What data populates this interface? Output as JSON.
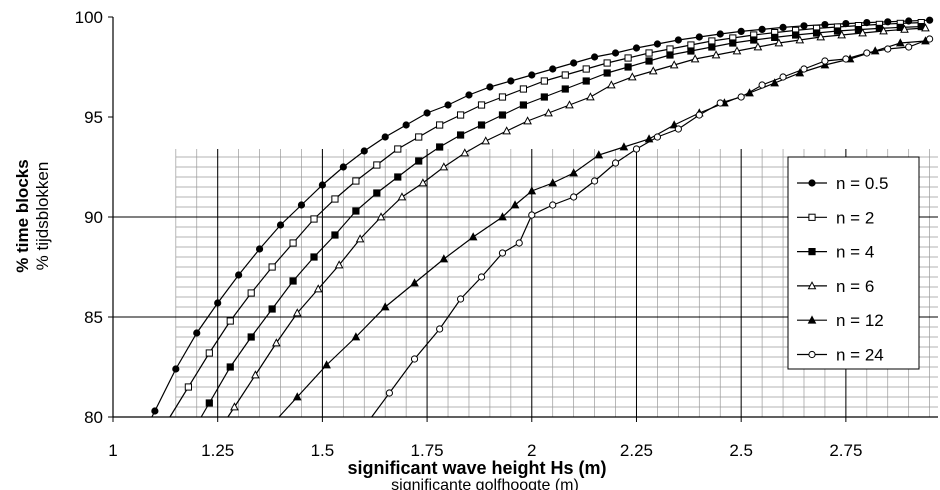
{
  "chart_data": {
    "type": "line",
    "xlabel": "significant wave height Hs (m)",
    "xlabel_secondary": "significante golfhoogte (m)",
    "ylabel": "% time blocks",
    "ylabel_secondary": "% tijdsblokken",
    "xlim": [
      1,
      2.97
    ],
    "ylim": [
      80,
      100
    ],
    "x_ticks": [
      "1",
      "1.25",
      "1.5",
      "1.75",
      "2",
      "2.25",
      "2.5",
      "2.75"
    ],
    "y_ticks": [
      "80",
      "85",
      "90",
      "95",
      "100"
    ],
    "grid": true,
    "legend_position": "right",
    "series": [
      {
        "name": "n = 0.5",
        "marker": "filled-circle",
        "x": [
          1.1,
          1.15,
          1.2,
          1.25,
          1.3,
          1.35,
          1.4,
          1.45,
          1.5,
          1.55,
          1.6,
          1.65,
          1.7,
          1.75,
          1.8,
          1.85,
          1.9,
          1.95,
          2.0,
          2.05,
          2.1,
          2.15,
          2.2,
          2.25,
          2.3,
          2.35,
          2.4,
          2.45,
          2.5,
          2.55,
          2.6,
          2.65,
          2.7,
          2.75,
          2.8,
          2.85,
          2.9,
          2.95
        ],
        "y": [
          80.3,
          82.4,
          84.2,
          85.7,
          87.1,
          88.4,
          89.6,
          90.6,
          91.6,
          92.5,
          93.3,
          94.0,
          94.6,
          95.2,
          95.6,
          96.1,
          96.5,
          96.8,
          97.1,
          97.4,
          97.7,
          98.0,
          98.2,
          98.45,
          98.65,
          98.85,
          99.0,
          99.15,
          99.28,
          99.38,
          99.48,
          99.56,
          99.62,
          99.67,
          99.72,
          99.76,
          99.8,
          99.84
        ]
      },
      {
        "name": "n = 2",
        "marker": "open-square",
        "x": [
          1.18,
          1.23,
          1.28,
          1.33,
          1.38,
          1.43,
          1.48,
          1.53,
          1.58,
          1.63,
          1.68,
          1.73,
          1.78,
          1.83,
          1.88,
          1.93,
          1.98,
          2.03,
          2.08,
          2.13,
          2.18,
          2.23,
          2.28,
          2.33,
          2.38,
          2.43,
          2.48,
          2.53,
          2.58,
          2.63,
          2.68,
          2.73,
          2.78,
          2.83,
          2.88,
          2.93
        ],
        "y": [
          81.5,
          83.2,
          84.8,
          86.2,
          87.5,
          88.7,
          89.9,
          90.9,
          91.8,
          92.6,
          93.4,
          94.0,
          94.6,
          95.1,
          95.6,
          96.0,
          96.4,
          96.8,
          97.1,
          97.4,
          97.7,
          97.95,
          98.2,
          98.4,
          98.6,
          98.8,
          98.95,
          99.1,
          99.22,
          99.33,
          99.43,
          99.5,
          99.57,
          99.63,
          99.68,
          99.72
        ]
      },
      {
        "name": "n = 4",
        "marker": "filled-square",
        "x": [
          1.23,
          1.28,
          1.33,
          1.38,
          1.43,
          1.48,
          1.53,
          1.58,
          1.63,
          1.68,
          1.73,
          1.78,
          1.83,
          1.88,
          1.93,
          1.98,
          2.03,
          2.08,
          2.13,
          2.18,
          2.23,
          2.28,
          2.33,
          2.38,
          2.43,
          2.48,
          2.53,
          2.58,
          2.63,
          2.68,
          2.73,
          2.78,
          2.83,
          2.88,
          2.93
        ],
        "y": [
          80.7,
          82.5,
          84.0,
          85.4,
          86.8,
          88.0,
          89.1,
          90.3,
          91.2,
          92.0,
          92.8,
          93.5,
          94.1,
          94.6,
          95.1,
          95.6,
          96.0,
          96.4,
          96.8,
          97.2,
          97.5,
          97.8,
          98.1,
          98.3,
          98.5,
          98.7,
          98.85,
          98.98,
          99.1,
          99.2,
          99.3,
          99.37,
          99.43,
          99.48,
          99.52
        ]
      },
      {
        "name": "n = 6",
        "marker": "open-triangle",
        "x": [
          1.29,
          1.34,
          1.39,
          1.44,
          1.49,
          1.54,
          1.59,
          1.64,
          1.69,
          1.74,
          1.79,
          1.84,
          1.89,
          1.94,
          1.99,
          2.04,
          2.09,
          2.14,
          2.19,
          2.24,
          2.29,
          2.34,
          2.39,
          2.44,
          2.49,
          2.54,
          2.59,
          2.64,
          2.69,
          2.74,
          2.79,
          2.84,
          2.89,
          2.94
        ],
        "y": [
          80.5,
          82.1,
          83.7,
          85.2,
          86.4,
          87.6,
          88.9,
          90.0,
          91.0,
          91.7,
          92.5,
          93.2,
          93.8,
          94.3,
          94.8,
          95.2,
          95.6,
          96.0,
          96.6,
          97.0,
          97.3,
          97.6,
          97.9,
          98.1,
          98.3,
          98.5,
          98.7,
          98.85,
          99.0,
          99.1,
          99.2,
          99.3,
          99.38,
          99.45
        ]
      },
      {
        "name": "n = 12",
        "marker": "filled-triangle",
        "x": [
          1.44,
          1.51,
          1.58,
          1.65,
          1.72,
          1.79,
          1.86,
          1.93,
          1.96,
          2.0,
          2.05,
          2.1,
          2.16,
          2.22,
          2.28,
          2.34,
          2.4,
          2.46,
          2.52,
          2.58,
          2.64,
          2.7,
          2.76,
          2.82,
          2.88,
          2.94
        ],
        "y": [
          81.0,
          82.6,
          84.0,
          85.5,
          86.7,
          87.9,
          89.0,
          90.0,
          90.6,
          91.3,
          91.7,
          92.2,
          93.1,
          93.5,
          93.9,
          94.6,
          95.2,
          95.7,
          96.2,
          96.7,
          97.2,
          97.6,
          97.9,
          98.3,
          98.7,
          98.8
        ]
      },
      {
        "name": "n = 24",
        "marker": "open-circle",
        "x": [
          1.66,
          1.72,
          1.78,
          1.83,
          1.88,
          1.93,
          1.97,
          2.0,
          2.05,
          2.1,
          2.15,
          2.2,
          2.25,
          2.3,
          2.35,
          2.4,
          2.45,
          2.5,
          2.55,
          2.6,
          2.65,
          2.7,
          2.75,
          2.8,
          2.85,
          2.9,
          2.95
        ],
        "y": [
          81.2,
          82.9,
          84.4,
          85.9,
          87.0,
          88.2,
          88.7,
          90.1,
          90.6,
          91.0,
          91.8,
          92.7,
          93.4,
          94.0,
          94.4,
          95.1,
          95.7,
          96.0,
          96.6,
          97.0,
          97.4,
          97.8,
          97.9,
          98.2,
          98.4,
          98.5,
          98.9
        ]
      }
    ]
  },
  "colors": {
    "line": "#000000",
    "grid_major": "#000000",
    "grid_minor": "#9a9a9a",
    "background": "#ffffff"
  }
}
